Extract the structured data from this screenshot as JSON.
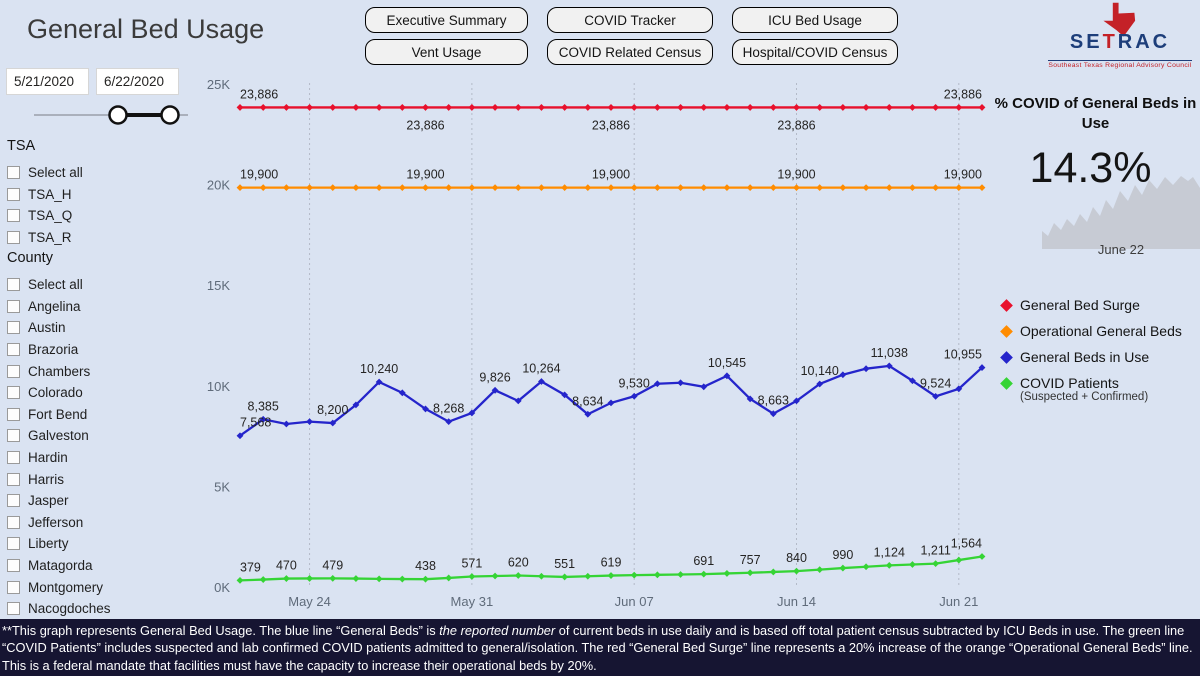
{
  "header": {
    "title": "General Bed Usage"
  },
  "nav": {
    "buttons": [
      "Executive Summary",
      "COVID Tracker",
      "ICU Bed Usage",
      "Vent Usage",
      "COVID Related Census",
      "Hospital/COVID Census"
    ]
  },
  "logo": {
    "se": "SE",
    "t": "T",
    "rac": "RAC",
    "tagline": "Southeast Texas Regional Advisory Council"
  },
  "filters": {
    "date_start": "5/21/2020",
    "date_end": "6/22/2020",
    "tsa": {
      "header": "TSA",
      "items": [
        "Select all",
        "TSA_H",
        "TSA_Q",
        "TSA_R"
      ]
    },
    "county": {
      "header": "County",
      "items": [
        "Select all",
        "Angelina",
        "Austin",
        "Brazoria",
        "Chambers",
        "Colorado",
        "Fort Bend",
        "Galveston",
        "Hardin",
        "Harris",
        "Jasper",
        "Jefferson",
        "Liberty",
        "Matagorda",
        "Montgomery",
        "Nacogdoches"
      ]
    }
  },
  "kpi": {
    "title": "% COVID of General Beds in Use",
    "value": "14.3%",
    "date_label": "June 22"
  },
  "legend": {
    "items": [
      {
        "label": "General Bed Surge",
        "color": "#e8112d"
      },
      {
        "label": "Operational General Beds",
        "color": "#ff8c00"
      },
      {
        "label": "General Beds in Use",
        "color": "#2525cb"
      },
      {
        "label": "COVID Patients",
        "color": "#35d435",
        "sub": "(Suspected + Confirmed)"
      }
    ]
  },
  "chart_data": {
    "type": "line",
    "marker": "diamond",
    "x_start_date": "5/21/2020",
    "x_end_date": "6/22/2020",
    "x_tick_labels": [
      "May 24",
      "May 31",
      "Jun 07",
      "Jun 14",
      "Jun 21"
    ],
    "x_tick_days": [
      3,
      10,
      17,
      24,
      31
    ],
    "y_tick_labels": [
      "0K",
      "5K",
      "10K",
      "15K",
      "20K",
      "25K"
    ],
    "ylim": [
      0,
      25000
    ],
    "grid": "vertical-dashed",
    "legend_position": "right",
    "series": [
      {
        "name": "General Bed Surge",
        "color": "#e8112d",
        "values": [
          23886,
          23886,
          23886,
          23886,
          23886,
          23886,
          23886,
          23886,
          23886,
          23886,
          23886,
          23886,
          23886,
          23886,
          23886,
          23886,
          23886,
          23886,
          23886,
          23886,
          23886,
          23886,
          23886,
          23886,
          23886,
          23886,
          23886,
          23886,
          23886,
          23886,
          23886,
          23886,
          23886
        ],
        "labels": [
          {
            "d": 0,
            "t": "23,886",
            "side": "above",
            "anchor": "start"
          },
          {
            "d": 8,
            "t": "23,886",
            "side": "below"
          },
          {
            "d": 16,
            "t": "23,886",
            "side": "below"
          },
          {
            "d": 24,
            "t": "23,886",
            "side": "below"
          },
          {
            "d": 32,
            "t": "23,886",
            "side": "above",
            "anchor": "end"
          }
        ]
      },
      {
        "name": "Operational General Beds",
        "color": "#ff8c00",
        "values": [
          19900,
          19900,
          19900,
          19900,
          19900,
          19900,
          19900,
          19900,
          19900,
          19900,
          19900,
          19900,
          19900,
          19900,
          19900,
          19900,
          19900,
          19900,
          19900,
          19900,
          19900,
          19900,
          19900,
          19900,
          19900,
          19900,
          19900,
          19900,
          19900,
          19900,
          19900,
          19900,
          19900
        ],
        "labels": [
          {
            "d": 0,
            "t": "19,900",
            "anchor": "start"
          },
          {
            "d": 8,
            "t": "19,900"
          },
          {
            "d": 16,
            "t": "19,900"
          },
          {
            "d": 24,
            "t": "19,900"
          },
          {
            "d": 32,
            "t": "19,900",
            "anchor": "end"
          }
        ]
      },
      {
        "name": "General Beds in Use",
        "color": "#2525cb",
        "values": [
          7568,
          8385,
          8150,
          8270,
          8200,
          9100,
          10240,
          9700,
          8900,
          8268,
          8700,
          9826,
          9300,
          10264,
          9600,
          8634,
          9200,
          9530,
          10150,
          10200,
          10000,
          10545,
          9400,
          8663,
          9300,
          10140,
          10600,
          10900,
          11038,
          10300,
          9524,
          9900,
          10955
        ],
        "labels": [
          {
            "d": 0,
            "t": "7,568",
            "anchor": "start"
          },
          {
            "d": 1,
            "t": "8,385"
          },
          {
            "d": 4,
            "t": "8,200"
          },
          {
            "d": 6,
            "t": "10,240"
          },
          {
            "d": 9,
            "t": "8,268"
          },
          {
            "d": 11,
            "t": "9,826"
          },
          {
            "d": 13,
            "t": "10,264"
          },
          {
            "d": 15,
            "t": "8,634"
          },
          {
            "d": 17,
            "t": "9,530"
          },
          {
            "d": 21,
            "t": "10,545"
          },
          {
            "d": 23,
            "t": "8,663"
          },
          {
            "d": 25,
            "t": "10,140"
          },
          {
            "d": 28,
            "t": "11,038"
          },
          {
            "d": 30,
            "t": "9,524"
          },
          {
            "d": 32,
            "t": "10,955",
            "anchor": "end"
          }
        ]
      },
      {
        "name": "COVID Patients",
        "color": "#35d435",
        "values": [
          379,
          420,
          470,
          475,
          479,
          470,
          455,
          445,
          438,
          500,
          571,
          595,
          620,
          585,
          551,
          585,
          619,
          640,
          655,
          672,
          691,
          724,
          757,
          798,
          840,
          915,
          990,
          1057,
          1124,
          1168,
          1211,
          1388,
          1564
        ],
        "labels": [
          {
            "d": 0,
            "t": "379",
            "anchor": "start"
          },
          {
            "d": 2,
            "t": "470"
          },
          {
            "d": 4,
            "t": "479"
          },
          {
            "d": 8,
            "t": "438"
          },
          {
            "d": 10,
            "t": "571"
          },
          {
            "d": 12,
            "t": "620"
          },
          {
            "d": 14,
            "t": "551"
          },
          {
            "d": 16,
            "t": "619"
          },
          {
            "d": 20,
            "t": "691"
          },
          {
            "d": 22,
            "t": "757"
          },
          {
            "d": 24,
            "t": "840"
          },
          {
            "d": 26,
            "t": "990"
          },
          {
            "d": 28,
            "t": "1,124"
          },
          {
            "d": 30,
            "t": "1,211"
          },
          {
            "d": 32,
            "t": "1,564",
            "anchor": "end"
          }
        ]
      }
    ]
  },
  "footnote": {
    "part1": "**This graph represents General Bed Usage. The blue line “General Beds” is ",
    "italic": "the reported number",
    "part2": " of current beds in use daily and is based off total patient census subtracted by ICU Beds in use. The green line “COVID Patients” includes suspected and lab confirmed COVID patients admitted to general/isolation. The red “General Bed Surge” line represents a 20% increase of the orange “Operational General Beds” line. This is a federal mandate that facilities must have the capacity to increase their operational beds by 20%."
  }
}
